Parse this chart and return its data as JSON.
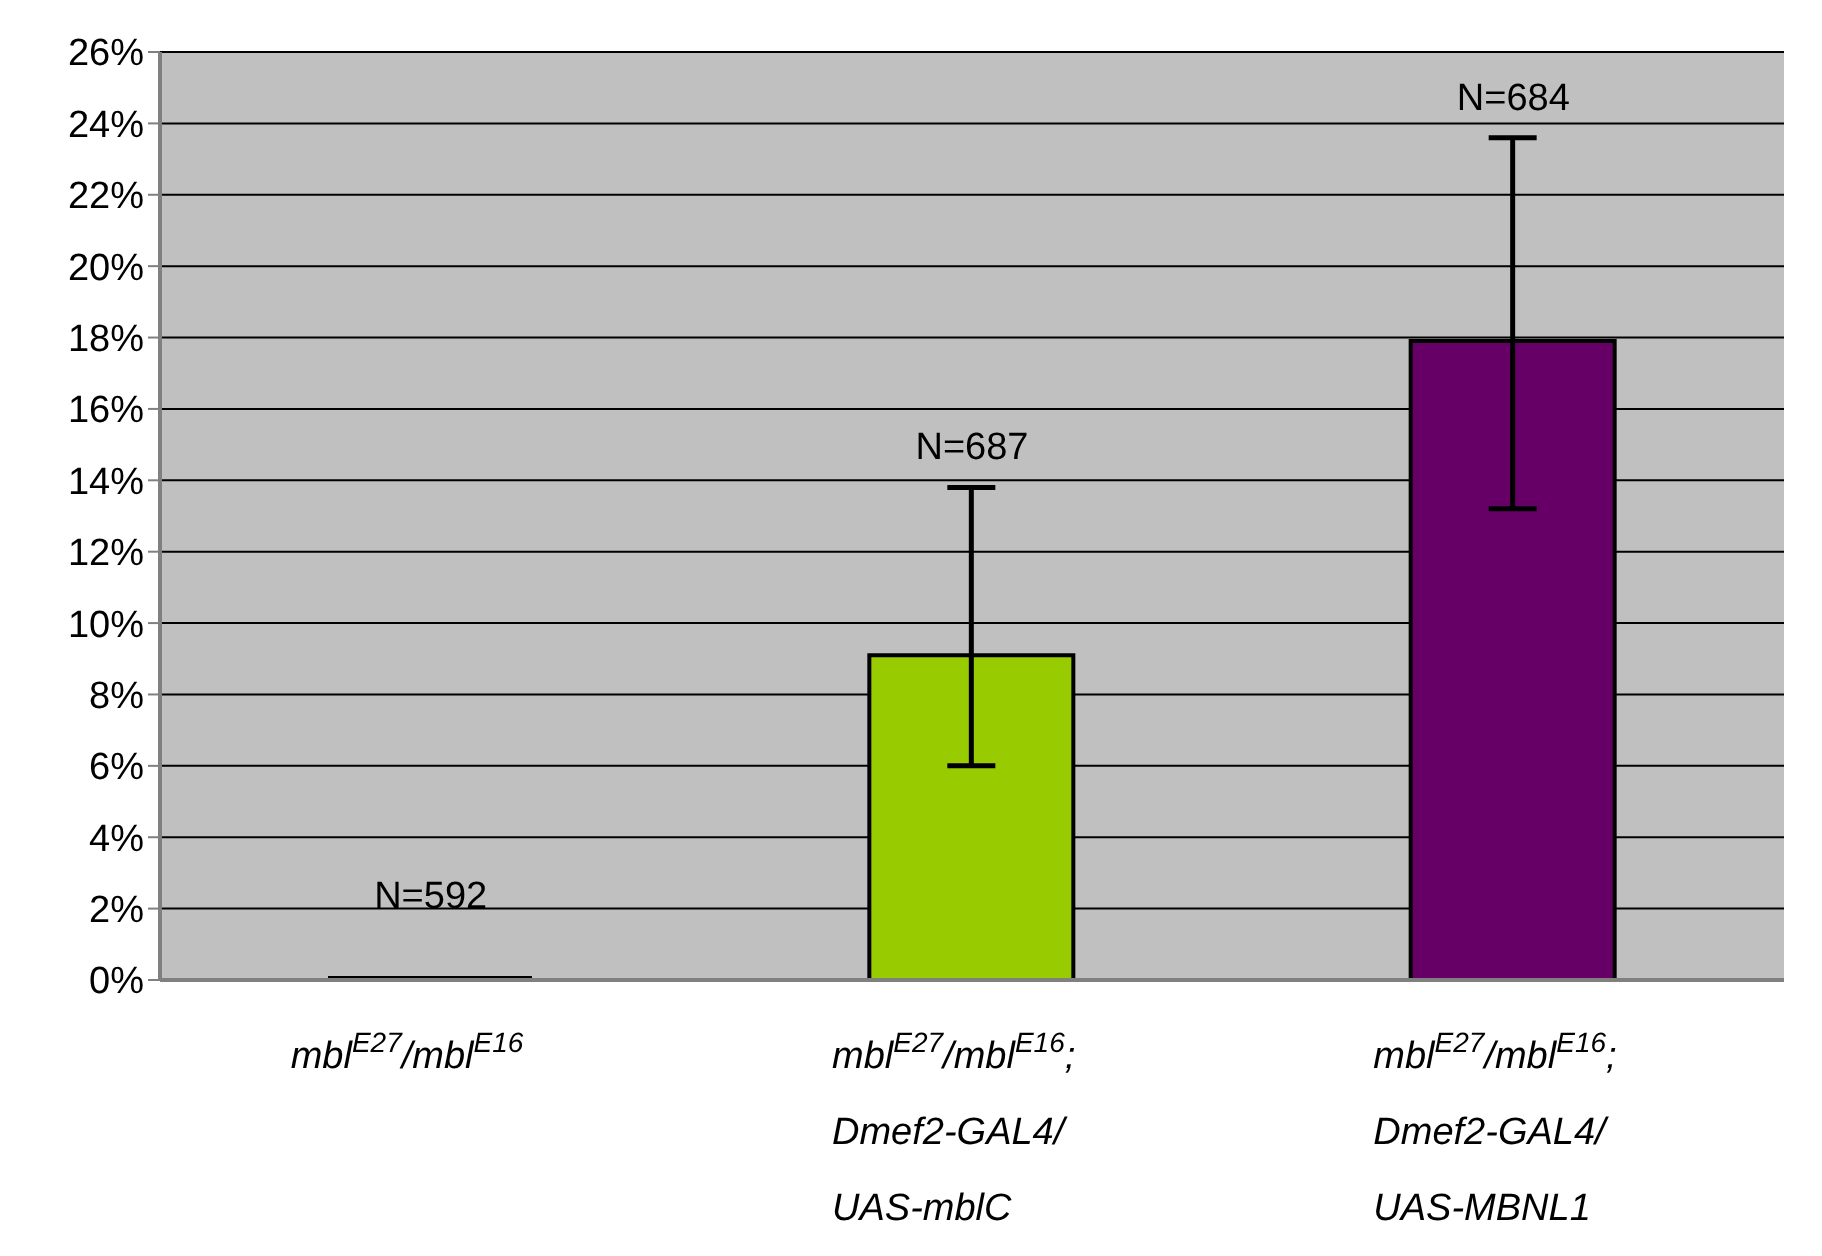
{
  "chart_data": {
    "type": "bar",
    "categories": [
      "mbl$^{E27}$/mbl$^{E16}$",
      "mbl$^{E27}$/mbl$^{E16}$;\nDmef2-GAL4/\nUAS-mblC",
      "mbl$^{E27}$/mbl$^{E16}$;\nDmef2-GAL4/\nUAS-MBNL1"
    ],
    "values": [
      0,
      9.1,
      17.9
    ],
    "colors": [
      "#000000",
      "#99cc00",
      "#660066"
    ],
    "errors": [
      null,
      [
        6.0,
        13.8
      ],
      [
        13.2,
        23.6
      ]
    ],
    "ylim": [
      0,
      26
    ],
    "yticks": [
      {
        "value": 0,
        "label": "0%"
      },
      {
        "value": 2,
        "label": "2%"
      },
      {
        "value": 4,
        "label": "4%"
      },
      {
        "value": 6,
        "label": "6%"
      },
      {
        "value": 8,
        "label": "8%"
      },
      {
        "value": 10,
        "label": "10%"
      },
      {
        "value": 12,
        "label": "12%"
      },
      {
        "value": 14,
        "label": "14%"
      },
      {
        "value": 16,
        "label": "16%"
      },
      {
        "value": 18,
        "label": "18%"
      },
      {
        "value": 20,
        "label": "20%"
      },
      {
        "value": 22,
        "label": "22%"
      },
      {
        "value": 24,
        "label": "24%"
      },
      {
        "value": 26,
        "label": "26%"
      }
    ],
    "annotations": [
      "N=592",
      "N=687",
      "N=684"
    ],
    "grid": "y",
    "legend": false
  }
}
